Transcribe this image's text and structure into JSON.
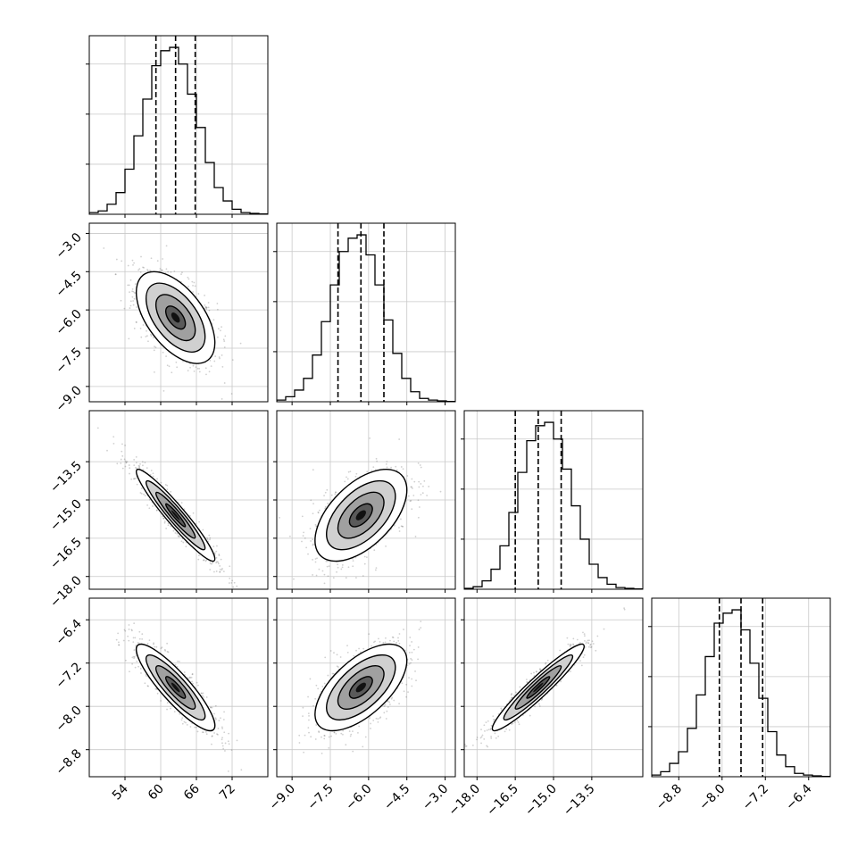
{
  "chart_data": {
    "type": "corner",
    "grid": true,
    "parameters": [
      {
        "range": [
          48,
          78
        ],
        "ticks": [
          "54",
          "60",
          "66",
          "72"
        ],
        "tick_values": [
          54,
          60,
          66,
          72
        ],
        "median": 62.5,
        "q16": 59.2,
        "q84": 65.8,
        "std": 3.3
      },
      {
        "range": [
          -9.6,
          -2.6
        ],
        "ticks": [
          "−9.0",
          "−7.5",
          "−6.0",
          "−4.5",
          "−3.0"
        ],
        "tick_values": [
          -9.0,
          -7.5,
          -6.0,
          -4.5,
          -3.0
        ],
        "median": -6.3,
        "q16": -7.2,
        "q84": -5.4,
        "std": 0.9
      },
      {
        "range": [
          -18.5,
          -11.5
        ],
        "ticks": [
          "−18.0",
          "−16.5",
          "−15.0",
          "−13.5"
        ],
        "tick_values": [
          -18.0,
          -16.5,
          -15.0,
          -13.5
        ],
        "median": -15.6,
        "q16": -16.5,
        "q84": -14.7,
        "std": 0.9
      },
      {
        "range": [
          -9.3,
          -6.0
        ],
        "ticks": [
          "−8.8",
          "−8.0",
          "−7.2",
          "−6.4"
        ],
        "tick_values": [
          -8.8,
          -8.0,
          -7.2,
          -6.4
        ],
        "median": -7.65,
        "q16": -8.05,
        "q84": -7.25,
        "std": 0.4
      }
    ],
    "correlations": [
      {
        "row": 1,
        "col": 0,
        "rho": -0.55
      },
      {
        "row": 2,
        "col": 0,
        "rho": -0.95
      },
      {
        "row": 2,
        "col": 1,
        "rho": 0.55
      },
      {
        "row": 3,
        "col": 0,
        "rho": -0.88
      },
      {
        "row": 3,
        "col": 1,
        "rho": 0.62
      },
      {
        "row": 3,
        "col": 2,
        "rho": 0.95
      }
    ],
    "histograms": [
      {
        "bins": 20,
        "counts": [
          0.01,
          0.02,
          0.06,
          0.13,
          0.27,
          0.47,
          0.69,
          0.89,
          0.98,
          1.0,
          0.9,
          0.72,
          0.52,
          0.31,
          0.16,
          0.08,
          0.03,
          0.01,
          0.005,
          0.002
        ]
      },
      {
        "bins": 20,
        "counts": [
          0.01,
          0.03,
          0.07,
          0.14,
          0.28,
          0.48,
          0.7,
          0.9,
          0.98,
          1.0,
          0.88,
          0.7,
          0.49,
          0.29,
          0.14,
          0.06,
          0.02,
          0.01,
          0.005,
          0.002
        ]
      },
      {
        "bins": 20,
        "counts": [
          0.005,
          0.015,
          0.05,
          0.12,
          0.26,
          0.46,
          0.7,
          0.89,
          0.98,
          1.0,
          0.9,
          0.72,
          0.5,
          0.3,
          0.15,
          0.07,
          0.03,
          0.01,
          0.005,
          0.002
        ]
      },
      {
        "bins": 20,
        "counts": [
          0.01,
          0.03,
          0.08,
          0.15,
          0.29,
          0.49,
          0.72,
          0.92,
          0.98,
          1.0,
          0.88,
          0.68,
          0.47,
          0.27,
          0.13,
          0.06,
          0.02,
          0.01,
          0.005,
          0.002
        ]
      }
    ]
  }
}
